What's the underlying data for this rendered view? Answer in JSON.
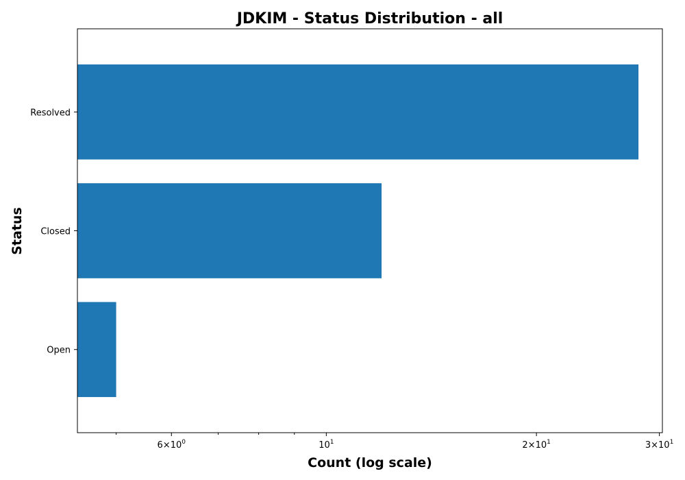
{
  "chart_data": {
    "type": "bar",
    "orientation": "horizontal",
    "title": "JDKIM - Status Distribution - all",
    "xlabel": "Count (log scale)",
    "ylabel": "Status",
    "x_scale": "log",
    "xlim": [
      4.4,
      30.3
    ],
    "categories": [
      "Resolved",
      "Closed",
      "Open"
    ],
    "values": [
      28,
      12,
      5
    ],
    "bar_color": "#1f77b4",
    "x_major_ticks": [
      {
        "value": 6,
        "base": "6",
        "exp": "0"
      },
      {
        "value": 10,
        "base": "10",
        "exp": "1"
      },
      {
        "value": 20,
        "base": "2",
        "exp": "1"
      },
      {
        "value": 30,
        "base": "3",
        "exp": "1"
      }
    ],
    "x_minor_ticks": [
      5,
      7,
      8,
      9
    ],
    "grid": false,
    "legend": false
  }
}
